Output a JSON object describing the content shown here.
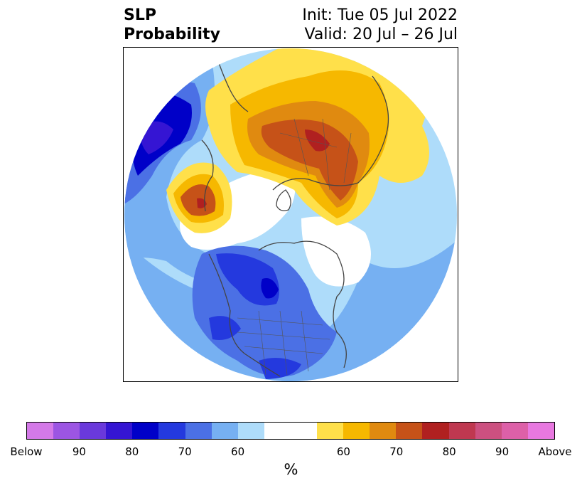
{
  "header": {
    "title_line1": "SLP",
    "title_line2": "Probability",
    "init_text": "Init: Tue 05 Jul 2022",
    "valid_text": "Valid: 20 Jul – 26 Jul"
  },
  "map": {
    "projection": "north-polar-stereographic",
    "features": [
      "coastlines",
      "country-borders",
      "us-state-borders"
    ],
    "regions": [
      {
        "name": "Arctic/Russia high",
        "category": "Above",
        "peak_percent": 80
      },
      {
        "name": "North Pacific high",
        "category": "Above",
        "peak_percent": 80
      },
      {
        "name": "North Atlantic low",
        "category": "Below",
        "peak_percent": 80
      },
      {
        "name": "Central Canada low",
        "category": "Below",
        "peak_percent": 80
      }
    ]
  },
  "colorbar": {
    "colors": [
      "#d479e8",
      "#9c55e3",
      "#6a39db",
      "#3515d3",
      "#0000c8",
      "#2439de",
      "#4b70e5",
      "#76b0f2",
      "#aedcfa",
      "#ffffff",
      "#ffffff",
      "#ffe04a",
      "#f6b800",
      "#e08a10",
      "#c65218",
      "#b02020",
      "#bf3850",
      "#cc5080",
      "#dd60a8",
      "#e878e0"
    ],
    "ticks": [
      "Below",
      "90",
      "80",
      "70",
      "60",
      "60",
      "70",
      "80",
      "90",
      "Above"
    ],
    "label": "%"
  }
}
